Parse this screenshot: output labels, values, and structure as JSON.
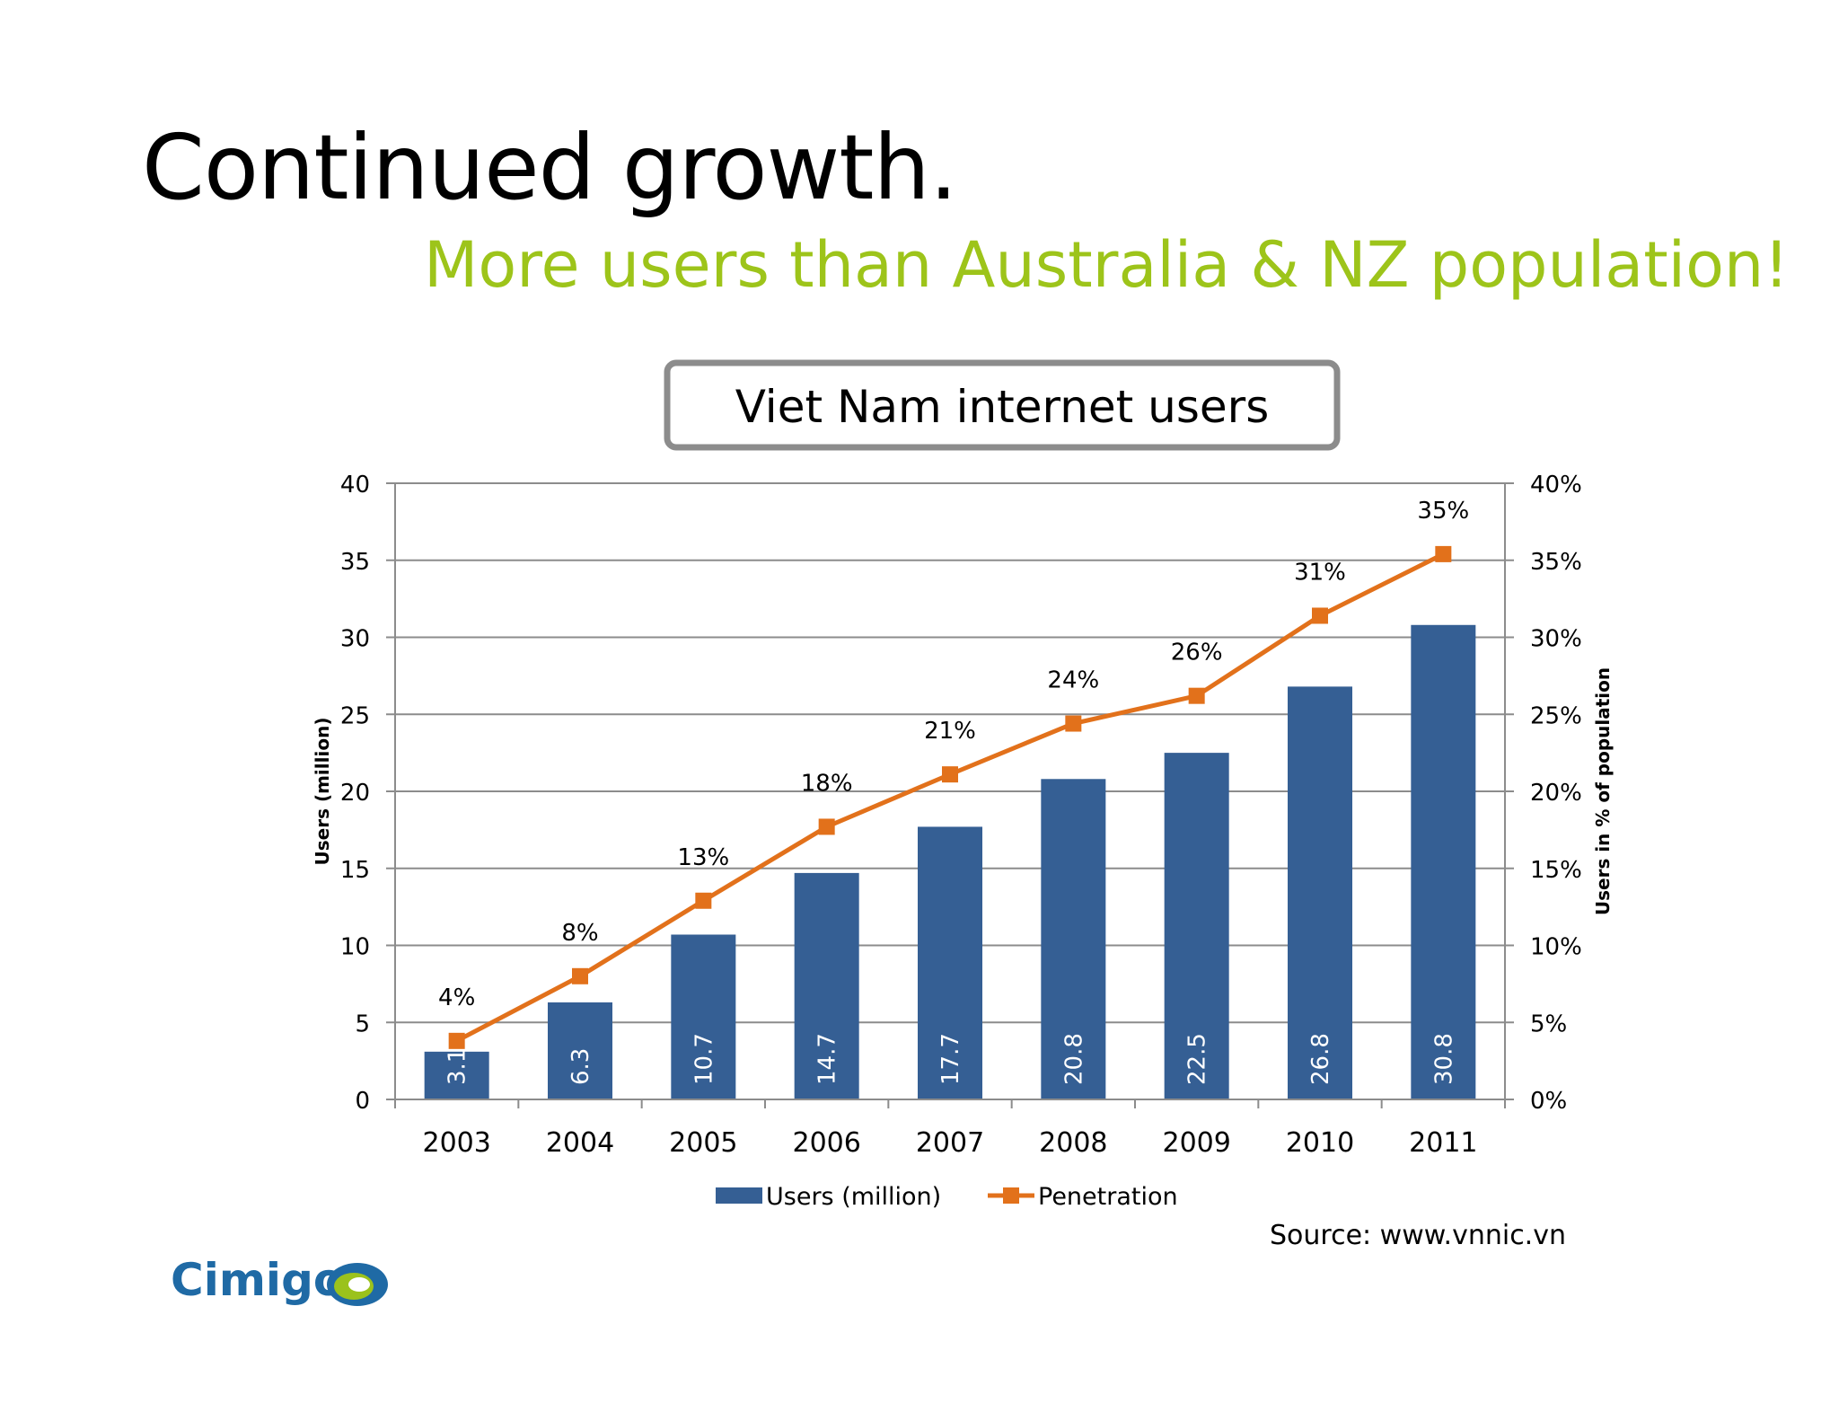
{
  "slide": {
    "title": "Continued growth.",
    "subtitle": "More users than Australia & NZ population!",
    "source": "Source: www.vnnic.vn",
    "logo_text": "Cimigo"
  },
  "colors": {
    "subtitle": "#9dc41a",
    "bar": "#355f94",
    "line": "#e2711b",
    "title_box_border": "#8c8c8c",
    "logo_text": "#1f6aa5",
    "logo_green": "#9bc21c",
    "logo_blue": "#1f6aa5"
  },
  "chart_data": {
    "type": "bar",
    "title": "Viet Nam internet users",
    "categories": [
      "2003",
      "2004",
      "2005",
      "2006",
      "2007",
      "2008",
      "2009",
      "2010",
      "2011"
    ],
    "ylabel": "Users (million)",
    "ylabel_right": "Users in % of population",
    "ylim": [
      0,
      40
    ],
    "yticks": [
      "0",
      "5",
      "10",
      "15",
      "20",
      "25",
      "30",
      "35",
      "40"
    ],
    "ylim_right": [
      0,
      40
    ],
    "yticks_right": [
      "0%",
      "5%",
      "10%",
      "15%",
      "20%",
      "25%",
      "30%",
      "35%",
      "40%"
    ],
    "grid": true,
    "legend_position": "bottom",
    "series": [
      {
        "name": "Users (million)",
        "type": "bar",
        "axis": "left",
        "values": [
          3.1,
          6.3,
          10.7,
          14.7,
          17.7,
          20.8,
          22.5,
          26.8,
          30.8
        ],
        "labels": [
          "3.1",
          "6.3",
          "10.7",
          "14.7",
          "17.7",
          "20.8",
          "22.5",
          "26.8",
          "30.8"
        ]
      },
      {
        "name": "Penetration",
        "type": "line",
        "axis": "right",
        "values": [
          3.8,
          8.0,
          12.9,
          17.7,
          21.1,
          24.4,
          26.2,
          31.4,
          35.4
        ],
        "labels": [
          "4%",
          "8%",
          "13%",
          "18%",
          "21%",
          "24%",
          "26%",
          "31%",
          "35%"
        ]
      }
    ]
  }
}
